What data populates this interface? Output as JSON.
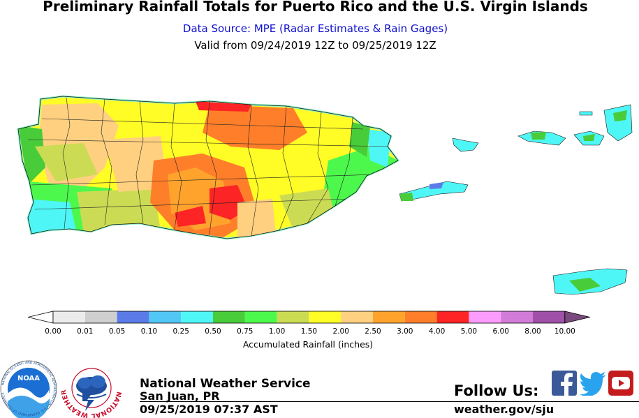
{
  "header": {
    "title": "Preliminary Rainfall Totals for Puerto Rico and the U.S. Virgin Islands",
    "data_source": "Data Source: MPE (Radar Estimates & Rain Gages)",
    "valid_range": "Valid from 09/24/2019 12Z to 09/25/2019 12Z"
  },
  "legend": {
    "label": "Accumulated Rainfall (inches)",
    "bins": [
      {
        "value": "0.00",
        "color": "#ececec"
      },
      {
        "value": "0.01",
        "color": "#cfcfcf"
      },
      {
        "value": "0.05",
        "color": "#5b7ce8"
      },
      {
        "value": "0.10",
        "color": "#52c7f5"
      },
      {
        "value": "0.25",
        "color": "#4ff6f6"
      },
      {
        "value": "0.50",
        "color": "#49cc3a"
      },
      {
        "value": "0.75",
        "color": "#4cf84c"
      },
      {
        "value": "1.00",
        "color": "#cbdc54"
      },
      {
        "value": "1.50",
        "color": "#fffc26"
      },
      {
        "value": "2.00",
        "color": "#ffd080"
      },
      {
        "value": "2.50",
        "color": "#ffa32c"
      },
      {
        "value": "3.00",
        "color": "#ff7e2a"
      },
      {
        "value": "4.00",
        "color": "#fc2424"
      },
      {
        "value": "5.00",
        "color": "#fc9cfc"
      },
      {
        "value": "6.00",
        "color": "#d27cd8"
      },
      {
        "value": "8.00",
        "color": "#a050a8"
      },
      {
        "value": "10.00",
        "color": "#7a4a7e"
      }
    ]
  },
  "footer": {
    "org_name": "National Weather Service",
    "office": "San Juan, PR",
    "issued": "09/25/2019 07:37 AST",
    "follow_us": "Follow Us:",
    "website": "weather.gov/sju",
    "noaa_logo_text": "NOAA",
    "noaa_ring_text": "NATIONAL OCEANIC AND ATMOSPHERIC ADMINISTRATION • U.S. DEPARTMENT OF COMMERCE",
    "nws_ring_text": "NATIONAL WEATHER SERVICE"
  },
  "social": [
    {
      "name": "facebook",
      "icon": "facebook-icon",
      "color": "#3b5998"
    },
    {
      "name": "twitter",
      "icon": "twitter-icon",
      "color": "#2aa3ef"
    },
    {
      "name": "youtube",
      "icon": "youtube-icon",
      "color": "#e02020"
    }
  ]
}
